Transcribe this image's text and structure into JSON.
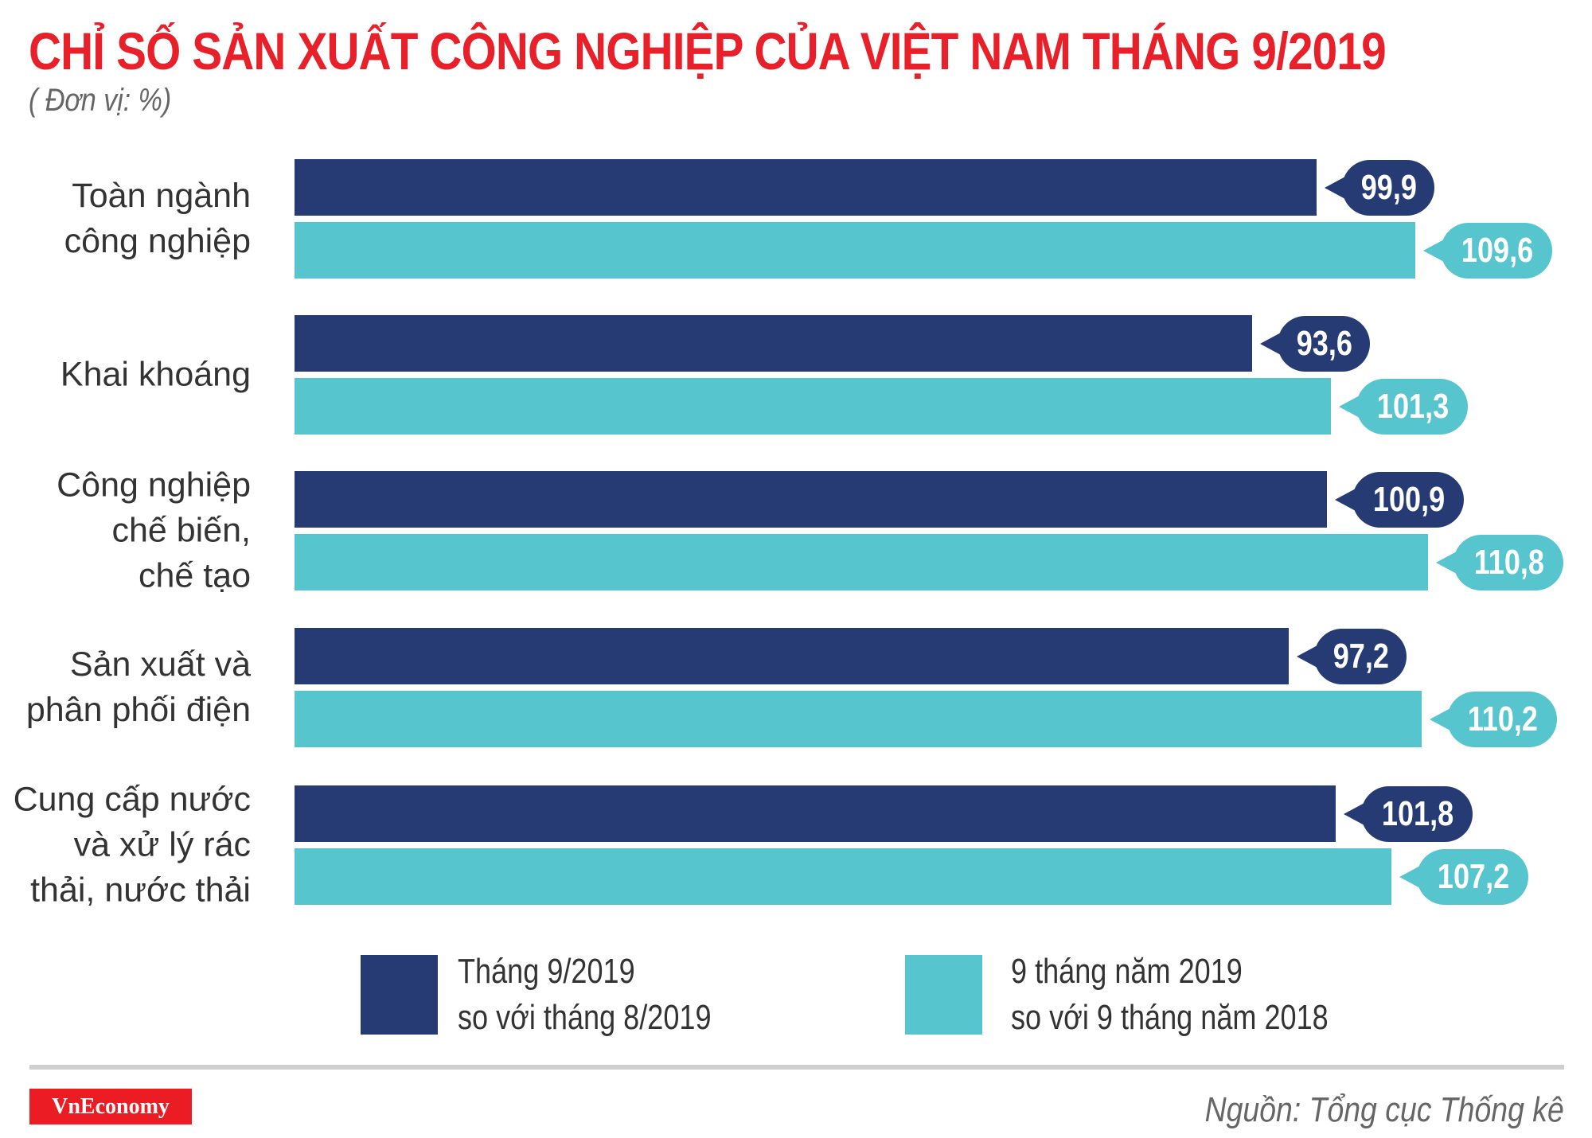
{
  "header": {
    "title": "CHỈ SỐ SẢN XUẤT CÔNG NGHIỆP CỦA VIỆT NAM THÁNG 9/2019",
    "unit": "( Đơn vị: %)"
  },
  "colors": {
    "title": "#e8202a",
    "series_0": "#263b73",
    "series_1": "#56c5cd",
    "logo_bg": "#ec1c24"
  },
  "chart_data": {
    "type": "bar",
    "orientation": "horizontal",
    "title": "CHỈ SỐ SẢN XUẤT CÔNG NGHIỆP CỦA VIỆT NAM THÁNG 9/2019",
    "subtitle": "( Đơn vị: %)",
    "xlabel": "",
    "ylabel": "",
    "grid": false,
    "legend_position": "bottom",
    "categories": [
      "Toàn ngành công nghiệp",
      "Khai khoáng",
      "Công nghiệp chế biến, chế tạo",
      "Sản xuất và phân phối điện",
      "Cung cấp nước và xử lý rác thải, nước thải"
    ],
    "category_labels": [
      "Toàn ngành\ncông nghiệp",
      "Khai khoáng",
      "Công nghiệp\nchế biến,\nchế tạo",
      "Sản xuất và\nphân phối điện",
      "Cung cấp nước\nvà xử lý rác\nthải, nước thải"
    ],
    "series": [
      {
        "name": "Tháng 9/2019 so với tháng 8/2019",
        "color": "#263b73",
        "values": [
          99.9,
          93.6,
          100.9,
          97.2,
          101.8
        ],
        "labels": [
          "99,9",
          "93,6",
          "100,9",
          "97,2",
          "101,8"
        ]
      },
      {
        "name": "9 tháng năm 2019 so với 9 tháng năm 2018",
        "color": "#56c5cd",
        "values": [
          109.6,
          101.3,
          110.8,
          110.2,
          107.2
        ],
        "labels": [
          "109,6",
          "101,3",
          "110,8",
          "110,2",
          "107,2"
        ]
      }
    ]
  },
  "legend": [
    {
      "label": "Tháng 9/2019\nso với tháng 8/2019",
      "color": "#263b73"
    },
    {
      "label": "9 tháng năm 2019\nso với 9 tháng năm 2018",
      "color": "#56c5cd"
    }
  ],
  "footer": {
    "logo": "VnEconomy",
    "source": "Nguồn: Tổng cục Thống kê"
  }
}
